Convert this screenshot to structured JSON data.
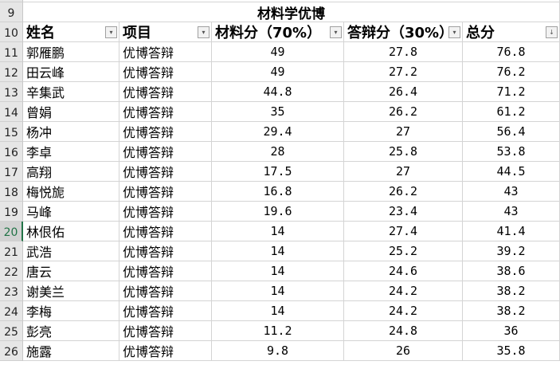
{
  "title_row": {
    "row": "9",
    "title": "材料学优博"
  },
  "header_row": {
    "row": "10",
    "columns": [
      "姓名",
      "项目",
      "材料分（70%）",
      "答辩分（30%）",
      "总分"
    ],
    "filter_icons": [
      "filter-dropdown-icon",
      "filter-dropdown-icon",
      "filter-dropdown-icon",
      "filter-dropdown-icon",
      "sort-descending-icon"
    ]
  },
  "selected_row": "20",
  "rows": [
    {
      "row": "11",
      "name": "郭雁鹏",
      "project": "优博答辩",
      "material": "49",
      "defense": "27.8",
      "total": "76.8"
    },
    {
      "row": "12",
      "name": "田云峰",
      "project": "优博答辩",
      "material": "49",
      "defense": "27.2",
      "total": "76.2"
    },
    {
      "row": "13",
      "name": "辛集武",
      "project": "优博答辩",
      "material": "44.8",
      "defense": "26.4",
      "total": "71.2"
    },
    {
      "row": "14",
      "name": "曾娟",
      "project": "优博答辩",
      "material": "35",
      "defense": "26.2",
      "total": "61.2"
    },
    {
      "row": "15",
      "name": "杨冲",
      "project": "优博答辩",
      "material": "29.4",
      "defense": "27",
      "total": "56.4"
    },
    {
      "row": "16",
      "name": "李卓",
      "project": "优博答辩",
      "material": "28",
      "defense": "25.8",
      "total": "53.8"
    },
    {
      "row": "17",
      "name": "高翔",
      "project": "优博答辩",
      "material": "17.5",
      "defense": "27",
      "total": "44.5"
    },
    {
      "row": "18",
      "name": "梅悦旎",
      "project": "优博答辩",
      "material": "16.8",
      "defense": "26.2",
      "total": "43"
    },
    {
      "row": "19",
      "name": "马峰",
      "project": "优博答辩",
      "material": "19.6",
      "defense": "23.4",
      "total": "43"
    },
    {
      "row": "20",
      "name": "林佷佑",
      "project": "优博答辩",
      "material": "14",
      "defense": "27.4",
      "total": "41.4"
    },
    {
      "row": "21",
      "name": "武浩",
      "project": "优博答辩",
      "material": "14",
      "defense": "25.2",
      "total": "39.2"
    },
    {
      "row": "22",
      "name": "唐云",
      "project": "优博答辩",
      "material": "14",
      "defense": "24.6",
      "total": "38.6"
    },
    {
      "row": "23",
      "name": "谢美兰",
      "project": "优博答辩",
      "material": "14",
      "defense": "24.2",
      "total": "38.2"
    },
    {
      "row": "24",
      "name": "李梅",
      "project": "优博答辩",
      "material": "14",
      "defense": "24.2",
      "total": "38.2"
    },
    {
      "row": "25",
      "name": "彭亮",
      "project": "优博答辩",
      "material": "11.2",
      "defense": "24.8",
      "total": "36"
    },
    {
      "row": "26",
      "name": "施露",
      "project": "优博答辩",
      "material": "9.8",
      "defense": "26",
      "total": "35.8"
    }
  ]
}
